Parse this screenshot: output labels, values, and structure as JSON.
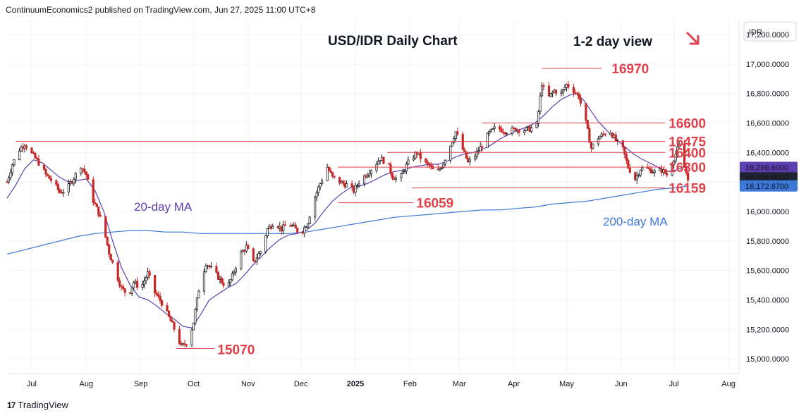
{
  "header": {
    "text": "ContinuumEconomics2 published on TradingView.com, Jun 27, 2025 11:00 UTC+8"
  },
  "footer": {
    "logo": "17",
    "brand": "TradingView"
  },
  "colors": {
    "level": "#e0404a",
    "ma20": "#5e3fb3",
    "ma200": "#3c78d8",
    "up": "#222222",
    "down": "#c62828",
    "arrow": "#e0404a"
  },
  "chart_data": {
    "type": "candlestick",
    "title": "USD/IDR Daily Chart",
    "subtitle": "1-2 day view",
    "symbol": "IDR",
    "direction_icon": "arrow-down-right-icon",
    "ylim": [
      14900,
      17300
    ],
    "y_ticks": [
      {
        "v": 15000,
        "label": "15,000.0000"
      },
      {
        "v": 15200,
        "label": "15,200.0000"
      },
      {
        "v": 15400,
        "label": "15,400.0000"
      },
      {
        "v": 15600,
        "label": "15,600.0000"
      },
      {
        "v": 15800,
        "label": "15,800.0000"
      },
      {
        "v": 16000,
        "label": "16,000.0000"
      },
      {
        "v": 16200,
        "label": "16,200.0000"
      },
      {
        "v": 16400,
        "label": "16,400.0000"
      },
      {
        "v": 16600,
        "label": "16,600.0000"
      },
      {
        "v": 16800,
        "label": "16,800.0000"
      },
      {
        "v": 17000,
        "label": "17,000.0000"
      },
      {
        "v": 17200,
        "label": "17,200.0000"
      }
    ],
    "price_labels": [
      {
        "v": 16298.6,
        "label": "16,298.6000",
        "bg": "#5e3fb3"
      },
      {
        "v": 16228.0,
        "label": "16,228.0000",
        "bg": "#1f2430"
      },
      {
        "v": 16172.67,
        "label": "16,172.6700",
        "bg": "#3c78d8"
      }
    ],
    "x_ticks": [
      {
        "d": 14,
        "label": "Jul"
      },
      {
        "d": 45,
        "label": "Aug"
      },
      {
        "d": 76,
        "label": "Sep"
      },
      {
        "d": 106,
        "label": "Oct"
      },
      {
        "d": 137,
        "label": "Nov"
      },
      {
        "d": 167,
        "label": "Dec"
      },
      {
        "d": 198,
        "label": "2025"
      },
      {
        "d": 229,
        "label": "Feb"
      },
      {
        "d": 257,
        "label": "Mar"
      },
      {
        "d": 288,
        "label": "Apr"
      },
      {
        "d": 318,
        "label": "May"
      },
      {
        "d": 349,
        "label": "Jun"
      },
      {
        "d": 379,
        "label": "Jul"
      },
      {
        "d": 410,
        "label": "Aug"
      }
    ],
    "levels": [
      {
        "v": 16970,
        "label": "16970",
        "d0": 304,
        "d1": 338
      },
      {
        "v": 16600,
        "label": "16600",
        "d0": 270,
        "d1": 374
      },
      {
        "v": 16475,
        "label": "16475",
        "d0": 5,
        "d1": 374
      },
      {
        "v": 16400,
        "label": "16400",
        "d0": 216,
        "d1": 374
      },
      {
        "v": 16300,
        "label": "16300",
        "d0": 188,
        "d1": 374
      },
      {
        "v": 16159,
        "label": "16159",
        "d0": 230,
        "d1": 374
      },
      {
        "v": 16059,
        "label": "16059",
        "d0": 188,
        "d1": 231
      },
      {
        "v": 15070,
        "label": "15070",
        "d0": 96,
        "d1": 118
      }
    ],
    "ma20_label": "20-day MA",
    "ma200_label": "200-day MA",
    "close_points": [
      {
        "d": 0,
        "v": 16200
      },
      {
        "d": 3,
        "v": 16320
      },
      {
        "d": 7,
        "v": 16420
      },
      {
        "d": 10,
        "v": 16460
      },
      {
        "d": 14,
        "v": 16390
      },
      {
        "d": 18,
        "v": 16330
      },
      {
        "d": 22,
        "v": 16250
      },
      {
        "d": 26,
        "v": 16200
      },
      {
        "d": 30,
        "v": 16130
      },
      {
        "d": 34,
        "v": 16150
      },
      {
        "d": 38,
        "v": 16230
      },
      {
        "d": 42,
        "v": 16310
      },
      {
        "d": 45,
        "v": 16250
      },
      {
        "d": 48,
        "v": 16100
      },
      {
        "d": 52,
        "v": 15990
      },
      {
        "d": 55,
        "v": 15880
      },
      {
        "d": 58,
        "v": 15720
      },
      {
        "d": 62,
        "v": 15580
      },
      {
        "d": 65,
        "v": 15480
      },
      {
        "d": 69,
        "v": 15430
      },
      {
        "d": 72,
        "v": 15520
      },
      {
        "d": 76,
        "v": 15480
      },
      {
        "d": 80,
        "v": 15580
      },
      {
        "d": 84,
        "v": 15450
      },
      {
        "d": 88,
        "v": 15380
      },
      {
        "d": 92,
        "v": 15280
      },
      {
        "d": 96,
        "v": 15180
      },
      {
        "d": 99,
        "v": 15080
      },
      {
        "d": 103,
        "v": 15120
      },
      {
        "d": 106,
        "v": 15250
      },
      {
        "d": 109,
        "v": 15470
      },
      {
        "d": 113,
        "v": 15650
      },
      {
        "d": 117,
        "v": 15600
      },
      {
        "d": 121,
        "v": 15540
      },
      {
        "d": 125,
        "v": 15480
      },
      {
        "d": 128,
        "v": 15560
      },
      {
        "d": 132,
        "v": 15700
      },
      {
        "d": 136,
        "v": 15760
      },
      {
        "d": 140,
        "v": 15650
      },
      {
        "d": 144,
        "v": 15730
      },
      {
        "d": 148,
        "v": 15880
      },
      {
        "d": 152,
        "v": 15930
      },
      {
        "d": 156,
        "v": 15880
      },
      {
        "d": 160,
        "v": 15920
      },
      {
        "d": 164,
        "v": 15880
      },
      {
        "d": 167,
        "v": 15850
      },
      {
        "d": 171,
        "v": 15930
      },
      {
        "d": 174,
        "v": 16070
      },
      {
        "d": 178,
        "v": 16190
      },
      {
        "d": 182,
        "v": 16300
      },
      {
        "d": 185,
        "v": 16230
      },
      {
        "d": 189,
        "v": 16200
      },
      {
        "d": 193,
        "v": 16180
      },
      {
        "d": 197,
        "v": 16140
      },
      {
        "d": 200,
        "v": 16200
      },
      {
        "d": 204,
        "v": 16250
      },
      {
        "d": 208,
        "v": 16300
      },
      {
        "d": 212,
        "v": 16360
      },
      {
        "d": 216,
        "v": 16330
      },
      {
        "d": 219,
        "v": 16240
      },
      {
        "d": 223,
        "v": 16210
      },
      {
        "d": 226,
        "v": 16290
      },
      {
        "d": 229,
        "v": 16350
      },
      {
        "d": 233,
        "v": 16400
      },
      {
        "d": 237,
        "v": 16330
      },
      {
        "d": 240,
        "v": 16310
      },
      {
        "d": 244,
        "v": 16250
      },
      {
        "d": 248,
        "v": 16330
      },
      {
        "d": 251,
        "v": 16420
      },
      {
        "d": 255,
        "v": 16540
      },
      {
        "d": 258,
        "v": 16450
      },
      {
        "d": 262,
        "v": 16330
      },
      {
        "d": 266,
        "v": 16380
      },
      {
        "d": 270,
        "v": 16450
      },
      {
        "d": 274,
        "v": 16530
      },
      {
        "d": 278,
        "v": 16570
      },
      {
        "d": 282,
        "v": 16550
      },
      {
        "d": 285,
        "v": 16540
      },
      {
        "d": 289,
        "v": 16560
      },
      {
        "d": 293,
        "v": 16550
      },
      {
        "d": 297,
        "v": 16560
      },
      {
        "d": 301,
        "v": 16580
      },
      {
        "d": 304,
        "v": 16870
      },
      {
        "d": 307,
        "v": 16760
      },
      {
        "d": 311,
        "v": 16820
      },
      {
        "d": 315,
        "v": 16800
      },
      {
        "d": 318,
        "v": 16860
      },
      {
        "d": 322,
        "v": 16820
      },
      {
        "d": 325,
        "v": 16780
      },
      {
        "d": 329,
        "v": 16600
      },
      {
        "d": 332,
        "v": 16430
      },
      {
        "d": 336,
        "v": 16500
      },
      {
        "d": 340,
        "v": 16530
      },
      {
        "d": 343,
        "v": 16540
      },
      {
        "d": 347,
        "v": 16460
      },
      {
        "d": 350,
        "v": 16420
      },
      {
        "d": 353,
        "v": 16300
      },
      {
        "d": 357,
        "v": 16220
      },
      {
        "d": 360,
        "v": 16290
      },
      {
        "d": 363,
        "v": 16290
      },
      {
        "d": 366,
        "v": 16280
      },
      {
        "d": 369,
        "v": 16260
      },
      {
        "d": 372,
        "v": 16280
      },
      {
        "d": 375,
        "v": 16250
      },
      {
        "d": 378,
        "v": 16330
      },
      {
        "d": 381,
        "v": 16420
      },
      {
        "d": 383,
        "v": 16470
      },
      {
        "d": 385,
        "v": 16300
      },
      {
        "d": 387,
        "v": 16228
      }
    ],
    "ma20_points": [
      {
        "d": 0,
        "v": 16090
      },
      {
        "d": 5,
        "v": 16180
      },
      {
        "d": 10,
        "v": 16290
      },
      {
        "d": 15,
        "v": 16350
      },
      {
        "d": 20,
        "v": 16330
      },
      {
        "d": 25,
        "v": 16280
      },
      {
        "d": 30,
        "v": 16230
      },
      {
        "d": 35,
        "v": 16200
      },
      {
        "d": 40,
        "v": 16210
      },
      {
        "d": 45,
        "v": 16220
      },
      {
        "d": 50,
        "v": 16140
      },
      {
        "d": 55,
        "v": 16000
      },
      {
        "d": 60,
        "v": 15800
      },
      {
        "d": 65,
        "v": 15620
      },
      {
        "d": 70,
        "v": 15500
      },
      {
        "d": 75,
        "v": 15420
      },
      {
        "d": 80,
        "v": 15400
      },
      {
        "d": 85,
        "v": 15360
      },
      {
        "d": 90,
        "v": 15310
      },
      {
        "d": 95,
        "v": 15270
      },
      {
        "d": 100,
        "v": 15220
      },
      {
        "d": 105,
        "v": 15210
      },
      {
        "d": 110,
        "v": 15300
      },
      {
        "d": 115,
        "v": 15400
      },
      {
        "d": 120,
        "v": 15440
      },
      {
        "d": 125,
        "v": 15480
      },
      {
        "d": 130,
        "v": 15510
      },
      {
        "d": 135,
        "v": 15570
      },
      {
        "d": 140,
        "v": 15640
      },
      {
        "d": 145,
        "v": 15700
      },
      {
        "d": 150,
        "v": 15760
      },
      {
        "d": 155,
        "v": 15810
      },
      {
        "d": 160,
        "v": 15840
      },
      {
        "d": 165,
        "v": 15850
      },
      {
        "d": 170,
        "v": 15870
      },
      {
        "d": 175,
        "v": 15920
      },
      {
        "d": 180,
        "v": 16000
      },
      {
        "d": 185,
        "v": 16070
      },
      {
        "d": 190,
        "v": 16120
      },
      {
        "d": 195,
        "v": 16160
      },
      {
        "d": 200,
        "v": 16170
      },
      {
        "d": 205,
        "v": 16190
      },
      {
        "d": 210,
        "v": 16220
      },
      {
        "d": 215,
        "v": 16250
      },
      {
        "d": 220,
        "v": 16270
      },
      {
        "d": 225,
        "v": 16280
      },
      {
        "d": 230,
        "v": 16300
      },
      {
        "d": 235,
        "v": 16310
      },
      {
        "d": 240,
        "v": 16320
      },
      {
        "d": 245,
        "v": 16320
      },
      {
        "d": 250,
        "v": 16340
      },
      {
        "d": 255,
        "v": 16370
      },
      {
        "d": 260,
        "v": 16390
      },
      {
        "d": 265,
        "v": 16400
      },
      {
        "d": 270,
        "v": 16420
      },
      {
        "d": 275,
        "v": 16450
      },
      {
        "d": 280,
        "v": 16490
      },
      {
        "d": 285,
        "v": 16520
      },
      {
        "d": 290,
        "v": 16550
      },
      {
        "d": 295,
        "v": 16570
      },
      {
        "d": 300,
        "v": 16600
      },
      {
        "d": 305,
        "v": 16650
      },
      {
        "d": 310,
        "v": 16710
      },
      {
        "d": 315,
        "v": 16760
      },
      {
        "d": 320,
        "v": 16790
      },
      {
        "d": 324,
        "v": 16800
      },
      {
        "d": 328,
        "v": 16750
      },
      {
        "d": 332,
        "v": 16680
      },
      {
        "d": 336,
        "v": 16610
      },
      {
        "d": 340,
        "v": 16560
      },
      {
        "d": 344,
        "v": 16510
      },
      {
        "d": 348,
        "v": 16470
      },
      {
        "d": 352,
        "v": 16430
      },
      {
        "d": 356,
        "v": 16390
      },
      {
        "d": 360,
        "v": 16360
      },
      {
        "d": 365,
        "v": 16330
      },
      {
        "d": 370,
        "v": 16300
      },
      {
        "d": 375,
        "v": 16270
      },
      {
        "d": 380,
        "v": 16280
      },
      {
        "d": 384,
        "v": 16300
      },
      {
        "d": 387,
        "v": 16298.6
      }
    ],
    "ma200_points": [
      {
        "d": 0,
        "v": 15710
      },
      {
        "d": 10,
        "v": 15740
      },
      {
        "d": 20,
        "v": 15770
      },
      {
        "d": 30,
        "v": 15800
      },
      {
        "d": 40,
        "v": 15830
      },
      {
        "d": 50,
        "v": 15850
      },
      {
        "d": 60,
        "v": 15860
      },
      {
        "d": 70,
        "v": 15870
      },
      {
        "d": 80,
        "v": 15870
      },
      {
        "d": 90,
        "v": 15860
      },
      {
        "d": 100,
        "v": 15860
      },
      {
        "d": 110,
        "v": 15850
      },
      {
        "d": 120,
        "v": 15850
      },
      {
        "d": 130,
        "v": 15850
      },
      {
        "d": 140,
        "v": 15850
      },
      {
        "d": 150,
        "v": 15850
      },
      {
        "d": 160,
        "v": 15850
      },
      {
        "d": 170,
        "v": 15860
      },
      {
        "d": 180,
        "v": 15880
      },
      {
        "d": 190,
        "v": 15900
      },
      {
        "d": 200,
        "v": 15920
      },
      {
        "d": 210,
        "v": 15940
      },
      {
        "d": 220,
        "v": 15960
      },
      {
        "d": 230,
        "v": 15970
      },
      {
        "d": 240,
        "v": 15980
      },
      {
        "d": 250,
        "v": 15990
      },
      {
        "d": 260,
        "v": 16000
      },
      {
        "d": 270,
        "v": 16010
      },
      {
        "d": 280,
        "v": 16010
      },
      {
        "d": 290,
        "v": 16020
      },
      {
        "d": 300,
        "v": 16030
      },
      {
        "d": 310,
        "v": 16050
      },
      {
        "d": 320,
        "v": 16060
      },
      {
        "d": 330,
        "v": 16070
      },
      {
        "d": 340,
        "v": 16090
      },
      {
        "d": 350,
        "v": 16110
      },
      {
        "d": 360,
        "v": 16130
      },
      {
        "d": 370,
        "v": 16150
      },
      {
        "d": 380,
        "v": 16160
      },
      {
        "d": 387,
        "v": 16172.67
      }
    ]
  }
}
